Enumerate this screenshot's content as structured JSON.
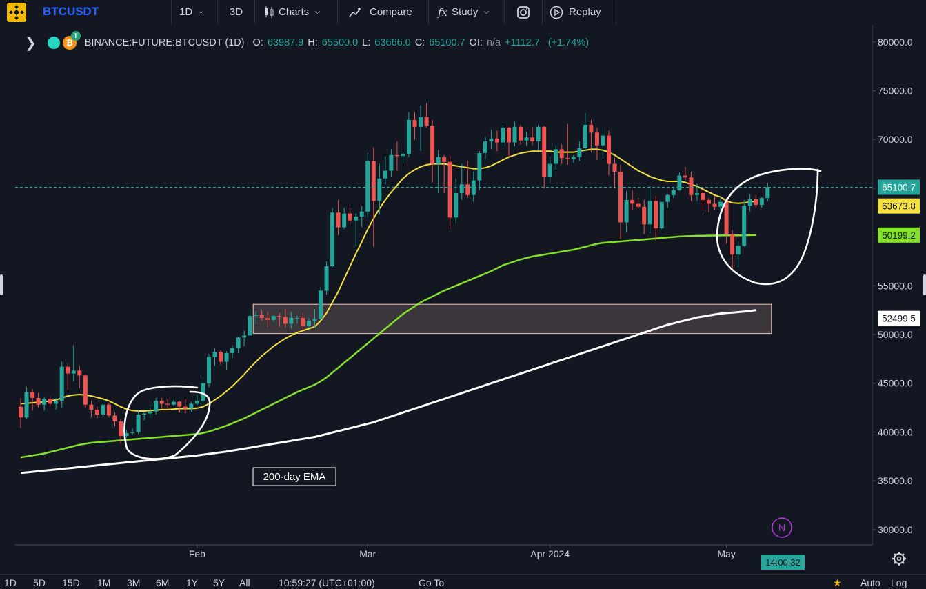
{
  "toolbar": {
    "symbol": "BTCUSDT",
    "interval": "1D",
    "view_3d": "3D",
    "charts": "Charts",
    "compare": "Compare",
    "study": "Study",
    "replay": "Replay"
  },
  "legend": {
    "symbol": "BINANCE:FUTURE:BTCUSDT (1D)",
    "o_label": "O:",
    "o": "63987.9",
    "h_label": "H:",
    "h": "65500.0",
    "l_label": "L:",
    "l": "63666.0",
    "c_label": "C:",
    "c": "65100.7",
    "oi_label": "OI:",
    "oi": "n/a",
    "change": "+1112.7",
    "change_pct": "(+1.74%)"
  },
  "price_tags": {
    "last": "65100.7",
    "ema_fast": "63673.8",
    "ema_mid": "60199.2",
    "ema_slow": "52499.5"
  },
  "annotation": "200-day EMA",
  "countdown": "14:00:32",
  "bottom": {
    "ranges": [
      "1D",
      "5D",
      "15D",
      "1M",
      "3M",
      "6M",
      "1Y",
      "5Y",
      "All"
    ],
    "time": "10:59:27 (UTC+01:00)",
    "goto": "Go To",
    "auto": "Auto",
    "log": "Log"
  },
  "colors": {
    "background": "#131722",
    "up": "#26a69a",
    "down": "#ef5350",
    "ema_fast": "#f5e03b",
    "ema_mid": "#84e02a",
    "ema_slow": "#ffffff",
    "zone": "#f5c8b8"
  },
  "chart_data": {
    "type": "candlestick",
    "interval": "1D",
    "y_axis_ticks": [
      30000,
      35000,
      40000,
      45000,
      50000,
      55000,
      60000,
      65000,
      70000,
      75000,
      80000
    ],
    "y_axis_labels": [
      "30000.0",
      "35000.0",
      "40000.0",
      "45000.0",
      "50000.0",
      "55000.0",
      "60000.0",
      "65000.0",
      "70000.0",
      "75000.0",
      "80000.0"
    ],
    "ylim": [
      29000,
      81500
    ],
    "x_tick_labels": [
      {
        "label": "Feb",
        "index": 30
      },
      {
        "label": "Mar",
        "index": 59
      },
      {
        "label": "Apr 2024",
        "index": 90
      },
      {
        "label": "May",
        "index": 120
      }
    ],
    "candles": [
      [
        42600,
        43500,
        40400,
        41500
      ],
      [
        41500,
        44600,
        41300,
        44100
      ],
      [
        44100,
        44400,
        42200,
        43500
      ],
      [
        43500,
        44000,
        42500,
        42800
      ],
      [
        42800,
        43600,
        42200,
        43400
      ],
      [
        43400,
        43600,
        42600,
        42900
      ],
      [
        42900,
        43500,
        42300,
        43200
      ],
      [
        43200,
        47200,
        42500,
        46700
      ],
      [
        46700,
        47000,
        44300,
        46000
      ],
      [
        46000,
        48900,
        45200,
        46300
      ],
      [
        46300,
        46800,
        44500,
        45800
      ],
      [
        45800,
        45900,
        42500,
        42800
      ],
      [
        42800,
        43200,
        41500,
        42300
      ],
      [
        42300,
        42600,
        41400,
        41800
      ],
      [
        41800,
        43300,
        41600,
        42800
      ],
      [
        42800,
        43000,
        41500,
        41700
      ],
      [
        41700,
        42000,
        40600,
        41100
      ],
      [
        41100,
        41300,
        38800,
        39600
      ],
      [
        39600,
        40200,
        39400,
        39900
      ],
      [
        39900,
        40400,
        39700,
        40000
      ],
      [
        40000,
        42200,
        39800,
        41800
      ],
      [
        41800,
        42000,
        41200,
        41900
      ],
      [
        41900,
        42800,
        41400,
        42100
      ],
      [
        42100,
        43500,
        41800,
        43200
      ],
      [
        43200,
        43500,
        42400,
        42900
      ],
      [
        42900,
        43400,
        42300,
        42800
      ],
      [
        42800,
        43300,
        42700,
        43100
      ],
      [
        43100,
        43200,
        42000,
        42600
      ],
      [
        42600,
        43400,
        41900,
        42400
      ],
      [
        42400,
        43100,
        42100,
        42900
      ],
      [
        42900,
        43800,
        42800,
        43200
      ],
      [
        43200,
        45600,
        42700,
        45000
      ],
      [
        45000,
        48000,
        44600,
        47700
      ],
      [
        47700,
        48600,
        46800,
        48200
      ],
      [
        48200,
        48400,
        46900,
        47200
      ],
      [
        47200,
        48300,
        46400,
        48100
      ],
      [
        48100,
        48900,
        47600,
        48600
      ],
      [
        48600,
        49800,
        48100,
        49700
      ],
      [
        49700,
        50400,
        48800,
        49900
      ],
      [
        49900,
        52600,
        49900,
        51900
      ],
      [
        51900,
        52400,
        51000,
        52000
      ],
      [
        52000,
        52500,
        51400,
        51700
      ],
      [
        51700,
        52300,
        50800,
        51500
      ],
      [
        51500,
        52000,
        51300,
        51900
      ],
      [
        51900,
        52200,
        50800,
        51800
      ],
      [
        51800,
        52600,
        50700,
        51100
      ],
      [
        51100,
        52300,
        50600,
        51700
      ],
      [
        51700,
        52000,
        51100,
        51700
      ],
      [
        51700,
        52200,
        50500,
        50900
      ],
      [
        50900,
        51700,
        50600,
        51400
      ],
      [
        51400,
        52600,
        50700,
        51600
      ],
      [
        51600,
        54900,
        51500,
        54500
      ],
      [
        54500,
        57500,
        54100,
        57000
      ],
      [
        57000,
        63000,
        56900,
        62500
      ],
      [
        62500,
        63800,
        60200,
        61000
      ],
      [
        61000,
        63000,
        60800,
        62400
      ],
      [
        62400,
        63000,
        61300,
        61700
      ],
      [
        61700,
        62400,
        59000,
        62100
      ],
      [
        62100,
        63200,
        61000,
        62600
      ],
      [
        62600,
        68600,
        62000,
        67800
      ],
      [
        67800,
        69200,
        59000,
        63700
      ],
      [
        63700,
        67500,
        62300,
        66000
      ],
      [
        66000,
        68300,
        65400,
        66800
      ],
      [
        66800,
        69000,
        66200,
        68400
      ],
      [
        68400,
        69800,
        66800,
        68300
      ],
      [
        68300,
        68700,
        67500,
        68500
      ],
      [
        68500,
        72800,
        68200,
        72000
      ],
      [
        72000,
        72800,
        70000,
        71300
      ],
      [
        71300,
        73500,
        68800,
        72300
      ],
      [
        72300,
        73700,
        71200,
        71400
      ],
      [
        71400,
        72000,
        65600,
        67500
      ],
      [
        67500,
        68900,
        64500,
        68200
      ],
      [
        68200,
        68400,
        64500,
        67700
      ],
      [
        67700,
        68300,
        60800,
        62000
      ],
      [
        62000,
        66000,
        61400,
        64500
      ],
      [
        64500,
        67500,
        63800,
        65400
      ],
      [
        65400,
        67800,
        64000,
        64300
      ],
      [
        64300,
        66700,
        63600,
        65800
      ],
      [
        65800,
        68800,
        64800,
        68600
      ],
      [
        68600,
        70300,
        68000,
        69800
      ],
      [
        69800,
        71000,
        69000,
        70100
      ],
      [
        70100,
        70900,
        68800,
        69700
      ],
      [
        69700,
        71500,
        69300,
        71200
      ],
      [
        71200,
        71300,
        68200,
        69700
      ],
      [
        69700,
        71800,
        69300,
        71300
      ],
      [
        71300,
        71500,
        69500,
        69900
      ],
      [
        69900,
        70800,
        69400,
        70200
      ],
      [
        70200,
        71300,
        69400,
        69800
      ],
      [
        69800,
        71500,
        68900,
        71300
      ],
      [
        71300,
        71400,
        65000,
        66200
      ],
      [
        66200,
        68300,
        65600,
        67500
      ],
      [
        67500,
        69400,
        66900,
        69000
      ],
      [
        69000,
        69500,
        67500,
        68100
      ],
      [
        68100,
        71600,
        67400,
        68000
      ],
      [
        68000,
        68400,
        67600,
        68200
      ],
      [
        68200,
        69800,
        67800,
        69100
      ],
      [
        69100,
        72700,
        68800,
        71500
      ],
      [
        71500,
        72000,
        68700,
        70700
      ],
      [
        70700,
        71200,
        67900,
        69400
      ],
      [
        69400,
        71300,
        68000,
        70400
      ],
      [
        70400,
        70900,
        66300,
        67500
      ],
      [
        67500,
        68100,
        65000,
        66700
      ],
      [
        66700,
        67400,
        59800,
        61500
      ],
      [
        61500,
        64700,
        60500,
        63800
      ],
      [
        63800,
        64800,
        62800,
        63400
      ],
      [
        63400,
        64000,
        62900,
        63100
      ],
      [
        63100,
        63800,
        60300,
        61300
      ],
      [
        61300,
        65200,
        60400,
        63700
      ],
      [
        63700,
        64200,
        59600,
        60900
      ],
      [
        60900,
        63500,
        60800,
        63600
      ],
      [
        63600,
        64400,
        63000,
        64300
      ],
      [
        64300,
        65000,
        64000,
        64800
      ],
      [
        64800,
        66600,
        64700,
        66300
      ],
      [
        66300,
        67200,
        65800,
        66100
      ],
      [
        66100,
        66700,
        63700,
        64300
      ],
      [
        64300,
        65500,
        63700,
        64500
      ],
      [
        64500,
        65000,
        62700,
        63800
      ],
      [
        63800,
        64000,
        62500,
        63400
      ],
      [
        63400,
        64200,
        62800,
        63100
      ],
      [
        63100,
        64200,
        61800,
        63600
      ],
      [
        63600,
        64000,
        59300,
        60300
      ],
      [
        60300,
        60700,
        56600,
        58200
      ],
      [
        58200,
        59600,
        56900,
        59100
      ],
      [
        59100,
        63800,
        59000,
        63200
      ],
      [
        63200,
        64400,
        62600,
        63900
      ],
      [
        63900,
        64300,
        63000,
        63300
      ],
      [
        63300,
        64100,
        63000,
        63988
      ],
      [
        63988,
        65500,
        63666,
        65101
      ]
    ],
    "ema_fast": [
      42900,
      42950,
      43000,
      43050,
      43100,
      43200,
      43300,
      43500,
      43700,
      43800,
      43850,
      43800,
      43700,
      43550,
      43400,
      43200,
      42900,
      42600,
      42350,
      42200,
      42150,
      42150,
      42200,
      42250,
      42300,
      42300,
      42350,
      42400,
      42400,
      42400,
      42450,
      42600,
      42900,
      43300,
      43700,
      44200,
      44700,
      45300,
      45900,
      46600,
      47200,
      47800,
      48300,
      48800,
      49200,
      49600,
      49900,
      50200,
      50400,
      50600,
      50800,
      51400,
      52200,
      53300,
      54400,
      55700,
      57000,
      58300,
      59500,
      60800,
      61900,
      62900,
      63800,
      64600,
      65300,
      66000,
      66500,
      66900,
      67200,
      67400,
      67500,
      67500,
      67500,
      67400,
      67300,
      67200,
      67100,
      67000,
      67000,
      67100,
      67300,
      67600,
      67900,
      68200,
      68400,
      68600,
      68700,
      68800,
      68800,
      68800,
      68800,
      68700,
      68700,
      68700,
      68700,
      68800,
      68900,
      69000,
      69000,
      68900,
      68700,
      68400,
      68000,
      67600,
      67200,
      66800,
      66500,
      66200,
      66000,
      65800,
      65700,
      65700,
      65700,
      65600,
      65400,
      65200,
      64900,
      64600,
      64300,
      64100,
      63700,
      63500,
      63450,
      63500,
      63600,
      63674
    ],
    "ema_mid": [
      37400,
      37500,
      37600,
      37700,
      37800,
      37950,
      38100,
      38250,
      38400,
      38550,
      38700,
      38800,
      38900,
      38950,
      39000,
      39050,
      39100,
      39150,
      39200,
      39250,
      39300,
      39350,
      39400,
      39450,
      39500,
      39550,
      39600,
      39650,
      39700,
      39750,
      39800,
      39900,
      40050,
      40250,
      40450,
      40650,
      40900,
      41150,
      41400,
      41700,
      42000,
      42300,
      42600,
      42900,
      43200,
      43500,
      43800,
      44100,
      44350,
      44600,
      44850,
      45200,
      45600,
      46100,
      46600,
      47100,
      47600,
      48100,
      48600,
      49100,
      49600,
      50100,
      50600,
      51100,
      51600,
      52100,
      52500,
      52900,
      53300,
      53600,
      53900,
      54200,
      54500,
      54750,
      55000,
      55250,
      55500,
      55750,
      56000,
      56250,
      56500,
      56800,
      57100,
      57300,
      57500,
      57700,
      57850,
      58000,
      58100,
      58200,
      58300,
      58400,
      58500,
      58600,
      58700,
      58850,
      59000,
      59150,
      59300,
      59400,
      59450,
      59500,
      59550,
      59600,
      59650,
      59700,
      59750,
      59800,
      59850,
      59900,
      59950,
      60000,
      60050,
      60080,
      60100,
      60120,
      60130,
      60140,
      60150,
      60160,
      60165,
      60170,
      60175,
      60180,
      60190,
      60199
    ],
    "ema_slow": [
      35800,
      35860,
      35920,
      35980,
      36040,
      36100,
      36160,
      36220,
      36280,
      36340,
      36400,
      36460,
      36520,
      36580,
      36640,
      36700,
      36760,
      36820,
      36880,
      36940,
      37000,
      37060,
      37120,
      37180,
      37240,
      37300,
      37360,
      37420,
      37480,
      37540,
      37600,
      37680,
      37760,
      37840,
      37920,
      38000,
      38100,
      38200,
      38300,
      38400,
      38500,
      38600,
      38700,
      38800,
      38900,
      39000,
      39100,
      39200,
      39300,
      39400,
      39500,
      39650,
      39800,
      39950,
      40100,
      40250,
      40400,
      40550,
      40700,
      40850,
      41000,
      41200,
      41400,
      41600,
      41800,
      42000,
      42200,
      42400,
      42600,
      42800,
      43000,
      43200,
      43400,
      43600,
      43800,
      44000,
      44200,
      44400,
      44600,
      44800,
      45000,
      45200,
      45400,
      45600,
      45800,
      46000,
      46200,
      46400,
      46600,
      46800,
      47000,
      47200,
      47400,
      47600,
      47800,
      48000,
      48200,
      48400,
      48600,
      48800,
      49000,
      49200,
      49400,
      49600,
      49800,
      50000,
      50200,
      50400,
      50600,
      50800,
      51000,
      51150,
      51300,
      51450,
      51600,
      51750,
      51850,
      51950,
      52050,
      52150,
      52200,
      52250,
      52300,
      52350,
      52420,
      52500
    ],
    "zone": {
      "low": 50100,
      "high": 53100,
      "from_index": 40,
      "to_index": 126
    },
    "last_price": 65100.7
  }
}
